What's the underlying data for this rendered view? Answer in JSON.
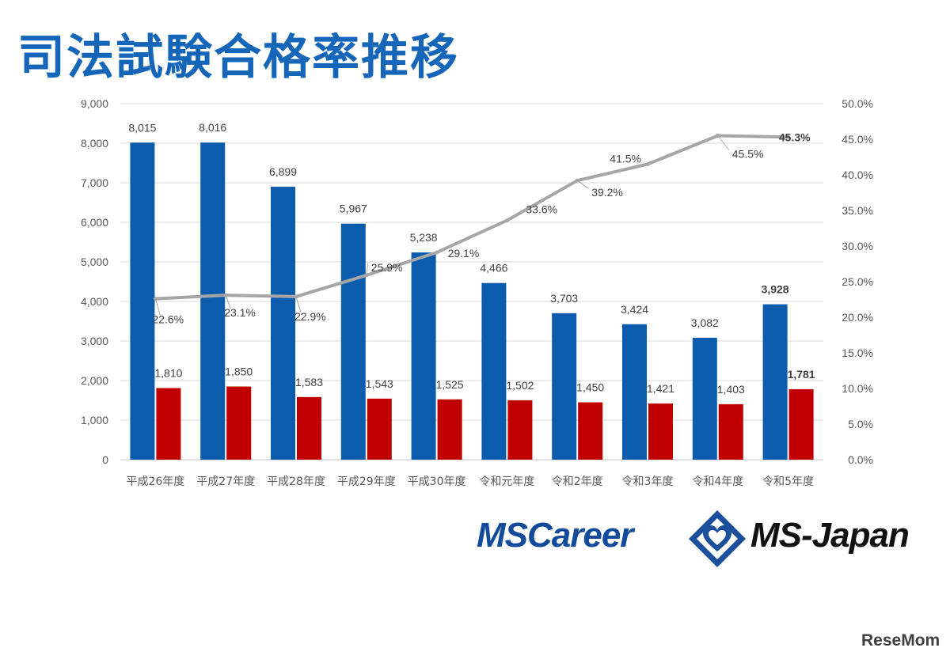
{
  "title": "司法試験合格率推移",
  "chart_data": {
    "type": "bar",
    "categories": [
      "平成26年度",
      "平成27年度",
      "平成28年度",
      "平成29年度",
      "平成30年度",
      "令和元年度",
      "令和2年度",
      "令和3年度",
      "令和4年度",
      "令和5年度"
    ],
    "series": [
      {
        "type": "bar",
        "axis": "left",
        "color": "#0b5cad",
        "values": [
          8015,
          8016,
          6899,
          5967,
          5238,
          4466,
          3703,
          3424,
          3082,
          3928
        ],
        "labels": [
          "8,015",
          "8,016",
          "6,899",
          "5,967",
          "5,238",
          "4,466",
          "3,703",
          "3,424",
          "3,082",
          "3,928"
        ]
      },
      {
        "type": "bar",
        "axis": "left",
        "color": "#c00000",
        "values": [
          1810,
          1850,
          1583,
          1543,
          1525,
          1502,
          1450,
          1421,
          1403,
          1781
        ],
        "labels": [
          "1,810",
          "1,850",
          "1,583",
          "1,543",
          "1,525",
          "1,502",
          "1,450",
          "1,421",
          "1,403",
          "1,781"
        ]
      },
      {
        "type": "line",
        "axis": "right",
        "color": "#a6a6a6",
        "values": [
          22.6,
          23.1,
          22.9,
          25.9,
          29.1,
          33.6,
          39.2,
          41.5,
          45.5,
          45.3
        ],
        "labels": [
          "22.6%",
          "23.1%",
          "22.9%",
          "25.9%",
          "29.1%",
          "33.6%",
          "39.2%",
          "41.5%",
          "45.5%",
          "45.3%"
        ]
      }
    ],
    "y_left": {
      "ylim": [
        0,
        9000
      ],
      "ticks": [
        "0",
        "1,000",
        "2,000",
        "3,000",
        "4,000",
        "5,000",
        "6,000",
        "7,000",
        "8,000",
        "9,000"
      ]
    },
    "y_right": {
      "ylim": [
        0,
        50
      ],
      "ticks": [
        "0.0%",
        "5.0%",
        "10.0%",
        "15.0%",
        "20.0%",
        "25.0%",
        "30.0%",
        "35.0%",
        "40.0%",
        "45.0%",
        "50.0%"
      ]
    },
    "grid": true,
    "legend": "none"
  },
  "logos": {
    "left": "MSCareer",
    "right": "MS-Japan"
  },
  "watermark": "ReseMom"
}
